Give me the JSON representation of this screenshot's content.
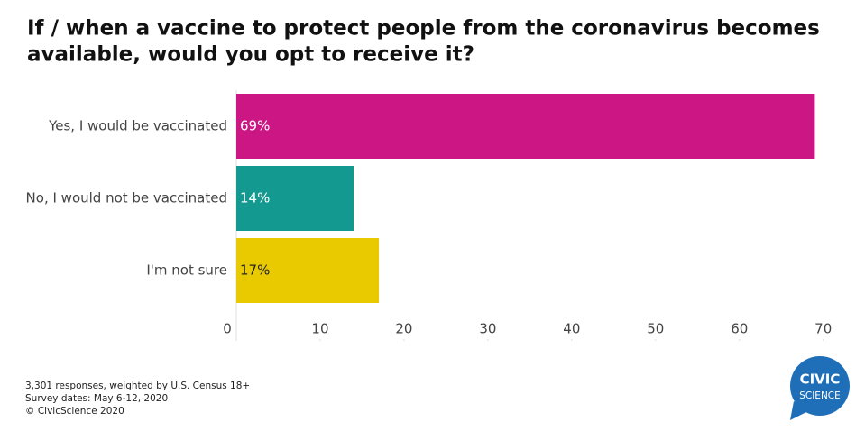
{
  "chart_data": {
    "type": "hbar",
    "title": [
      "If / when a vaccine to protect people from the coronavirus becomes",
      "available, would you opt to receive it?"
    ],
    "categories": [
      "Yes, I would be vaccinated",
      "No, I would not be vaccinated",
      "I'm not sure"
    ],
    "values": [
      69,
      14,
      17
    ],
    "value_labels": [
      "69%",
      "14%",
      "17%"
    ],
    "colors": [
      "#cc1683",
      "#149990",
      "#e9c900"
    ],
    "label_colors": [
      "#ffffff",
      "#ffffff",
      "#222222"
    ],
    "xlim": [
      0,
      71
    ],
    "xticks": [
      0,
      10,
      20,
      30,
      40,
      50,
      60,
      70
    ],
    "notes": [
      "3,301 responses, weighted by U.S. Census 18+",
      "Survey dates: May 6-12, 2020",
      "© CivicScience 2020"
    ],
    "logo": [
      "CIVIC",
      "SCIENCE"
    ]
  }
}
